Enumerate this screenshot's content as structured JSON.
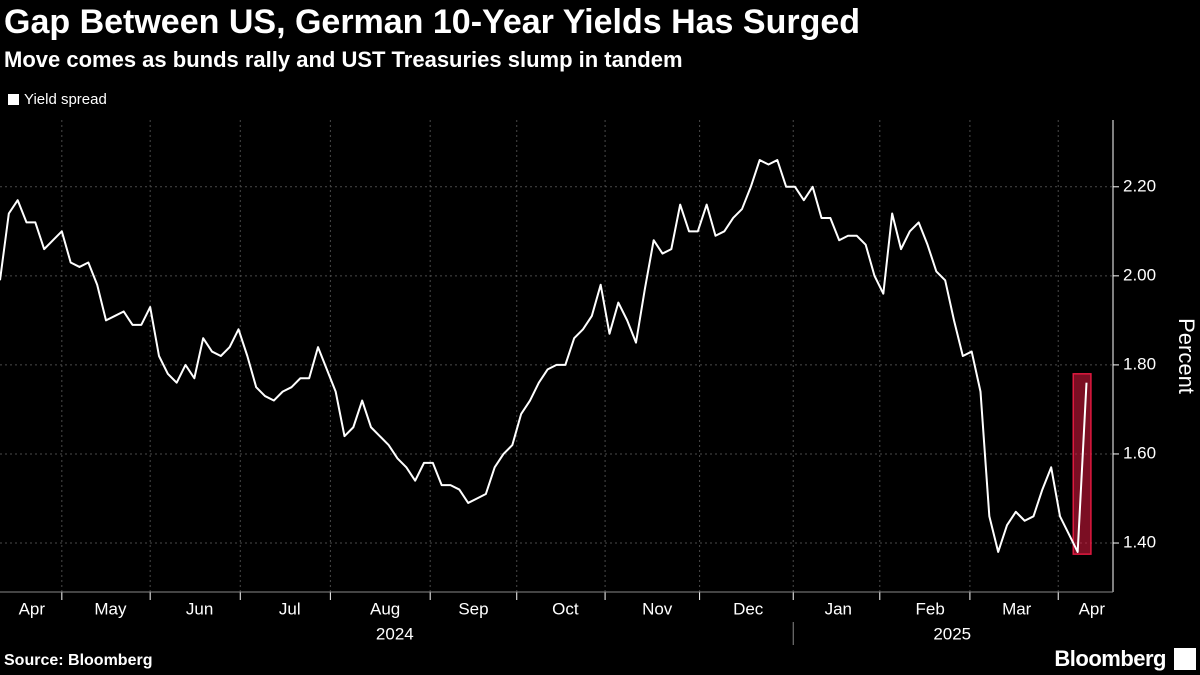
{
  "chart_data": {
    "type": "line",
    "title": "Gap Between US, German 10-Year Yields Has Surged",
    "subtitle": "Move comes as bunds rally and UST Treasuries slump in tandem",
    "source": "Source: Bloomberg",
    "brand": "Bloomberg",
    "y_axis_label": "Percent",
    "series": [
      {
        "name": "Yield spread",
        "color": "#ffffff",
        "x": [
          0,
          0.1,
          0.2,
          0.3,
          0.4,
          0.5,
          0.6,
          0.7,
          0.8,
          0.9,
          1,
          1.1,
          1.2,
          1.3,
          1.4,
          1.5,
          1.6,
          1.7,
          1.8,
          1.9,
          2,
          2.1,
          2.2,
          2.3,
          2.4,
          2.5,
          2.6,
          2.7,
          2.8,
          2.9,
          3,
          3.1,
          3.2,
          3.3,
          3.4,
          3.5,
          3.6,
          3.7,
          3.8,
          3.9,
          4,
          4.1,
          4.2,
          4.3,
          4.4,
          4.5,
          4.6,
          4.7,
          4.8,
          4.9,
          5,
          5.1,
          5.2,
          5.3,
          5.4,
          5.5,
          5.6,
          5.7,
          5.8,
          5.9,
          6,
          6.1,
          6.2,
          6.3,
          6.4,
          6.5,
          6.6,
          6.7,
          6.8,
          6.9,
          7,
          7.1,
          7.2,
          7.3,
          7.4,
          7.5,
          7.6,
          7.7,
          7.8,
          7.9,
          8,
          8.1,
          8.2,
          8.3,
          8.4,
          8.5,
          8.6,
          8.7,
          8.8,
          8.9,
          9,
          9.1,
          9.2,
          9.3,
          9.4,
          9.5,
          9.6,
          9.7,
          9.8,
          9.9,
          10,
          10.1,
          10.2,
          10.3,
          10.4,
          10.5,
          10.6,
          10.7,
          10.8,
          10.9,
          11,
          11.1,
          11.2,
          11.3,
          11.4,
          11.5,
          11.6,
          11.7,
          11.8,
          11.9,
          12,
          12.1,
          12.2,
          12.3
        ],
        "values": [
          1.99,
          2.14,
          2.17,
          2.12,
          2.12,
          2.06,
          2.08,
          2.1,
          2.03,
          2.02,
          2.03,
          1.98,
          1.9,
          1.91,
          1.92,
          1.89,
          1.89,
          1.93,
          1.82,
          1.78,
          1.76,
          1.8,
          1.77,
          1.86,
          1.83,
          1.82,
          1.84,
          1.88,
          1.82,
          1.75,
          1.73,
          1.72,
          1.74,
          1.75,
          1.77,
          1.77,
          1.84,
          1.79,
          1.74,
          1.64,
          1.66,
          1.72,
          1.66,
          1.64,
          1.62,
          1.59,
          1.57,
          1.54,
          1.58,
          1.58,
          1.53,
          1.53,
          1.52,
          1.49,
          1.5,
          1.51,
          1.57,
          1.6,
          1.62,
          1.69,
          1.72,
          1.76,
          1.79,
          1.8,
          1.8,
          1.86,
          1.88,
          1.91,
          1.98,
          1.87,
          1.94,
          1.9,
          1.85,
          1.97,
          2.08,
          2.05,
          2.06,
          2.16,
          2.1,
          2.1,
          2.16,
          2.09,
          2.1,
          2.13,
          2.15,
          2.2,
          2.26,
          2.25,
          2.26,
          2.2,
          2.2,
          2.17,
          2.2,
          2.13,
          2.13,
          2.08,
          2.09,
          2.09,
          2.07,
          2.0,
          1.96,
          2.14,
          2.06,
          2.1,
          2.12,
          2.07,
          2.01,
          1.99,
          1.9,
          1.82,
          1.83,
          1.74,
          1.46,
          1.38,
          1.44,
          1.47,
          1.45,
          1.46,
          1.52,
          1.57,
          1.46,
          1.42,
          1.38,
          1.76
        ]
      }
    ],
    "highlight": {
      "x": [
        12.15,
        12.35
      ],
      "y": [
        1.375,
        1.78
      ],
      "color": "#e0193f"
    },
    "xlim": [
      0,
      12.6
    ],
    "xticks": [
      {
        "value": 0.36,
        "label": "Apr"
      },
      {
        "value": 1.25,
        "label": "May"
      },
      {
        "value": 2.26,
        "label": "Jun"
      },
      {
        "value": 3.28,
        "label": "Jul"
      },
      {
        "value": 4.36,
        "label": "Aug"
      },
      {
        "value": 5.36,
        "label": "Sep"
      },
      {
        "value": 6.4,
        "label": "Oct"
      },
      {
        "value": 7.44,
        "label": "Nov"
      },
      {
        "value": 8.47,
        "label": "Dec"
      },
      {
        "value": 9.49,
        "label": "Jan"
      },
      {
        "value": 10.53,
        "label": "Feb"
      },
      {
        "value": 11.51,
        "label": "Mar"
      },
      {
        "value": 12.36,
        "label": "Apr"
      }
    ],
    "xgrid": [
      0.7,
      1.7,
      2.72,
      3.74,
      4.87,
      5.85,
      6.85,
      7.92,
      8.98,
      9.96,
      10.98,
      11.98
    ],
    "year_labels": [
      {
        "value": 4.47,
        "label": "2024"
      },
      {
        "value": 10.78,
        "label": "2025"
      }
    ],
    "year_divider": 8.98,
    "ylim": [
      1.29,
      2.35
    ],
    "yticks": [
      {
        "value": 1.4,
        "label": "1.40"
      },
      {
        "value": 1.6,
        "label": "1.60"
      },
      {
        "value": 1.8,
        "label": "1.80"
      },
      {
        "value": 2.0,
        "label": "2.00"
      },
      {
        "value": 2.2,
        "label": "2.20"
      }
    ],
    "grid": true
  }
}
